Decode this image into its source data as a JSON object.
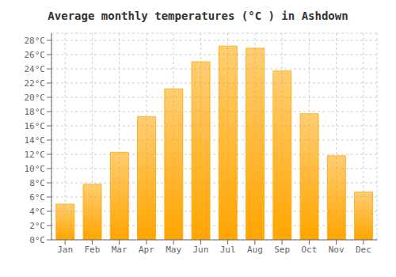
{
  "chart_data": {
    "type": "bar",
    "title": "Average monthly temperatures (°C ) in Ashdown",
    "categories": [
      "Jan",
      "Feb",
      "Mar",
      "Apr",
      "May",
      "Jun",
      "Jul",
      "Aug",
      "Sep",
      "Oct",
      "Nov",
      "Dec"
    ],
    "values": [
      5.0,
      7.8,
      12.3,
      17.3,
      21.2,
      25.0,
      27.2,
      26.9,
      23.7,
      17.7,
      11.8,
      6.7
    ],
    "color": "#FFA500",
    "ylim": [
      0,
      29
    ],
    "yticks": [
      {
        "value": 0,
        "label": "0°C"
      },
      {
        "value": 2,
        "label": "2°C"
      },
      {
        "value": 4,
        "label": "4°C"
      },
      {
        "value": 6,
        "label": "6°C"
      },
      {
        "value": 8,
        "label": "8°C"
      },
      {
        "value": 10,
        "label": "10°C"
      },
      {
        "value": 12,
        "label": "12°C"
      },
      {
        "value": 14,
        "label": "14°C"
      },
      {
        "value": 16,
        "label": "16°C"
      },
      {
        "value": 18,
        "label": "18°C"
      },
      {
        "value": 20,
        "label": "20°C"
      },
      {
        "value": 22,
        "label": "22°C"
      },
      {
        "value": 24,
        "label": "24°C"
      },
      {
        "value": 26,
        "label": "26°C"
      },
      {
        "value": 28,
        "label": "28°C"
      }
    ],
    "grid": true
  }
}
